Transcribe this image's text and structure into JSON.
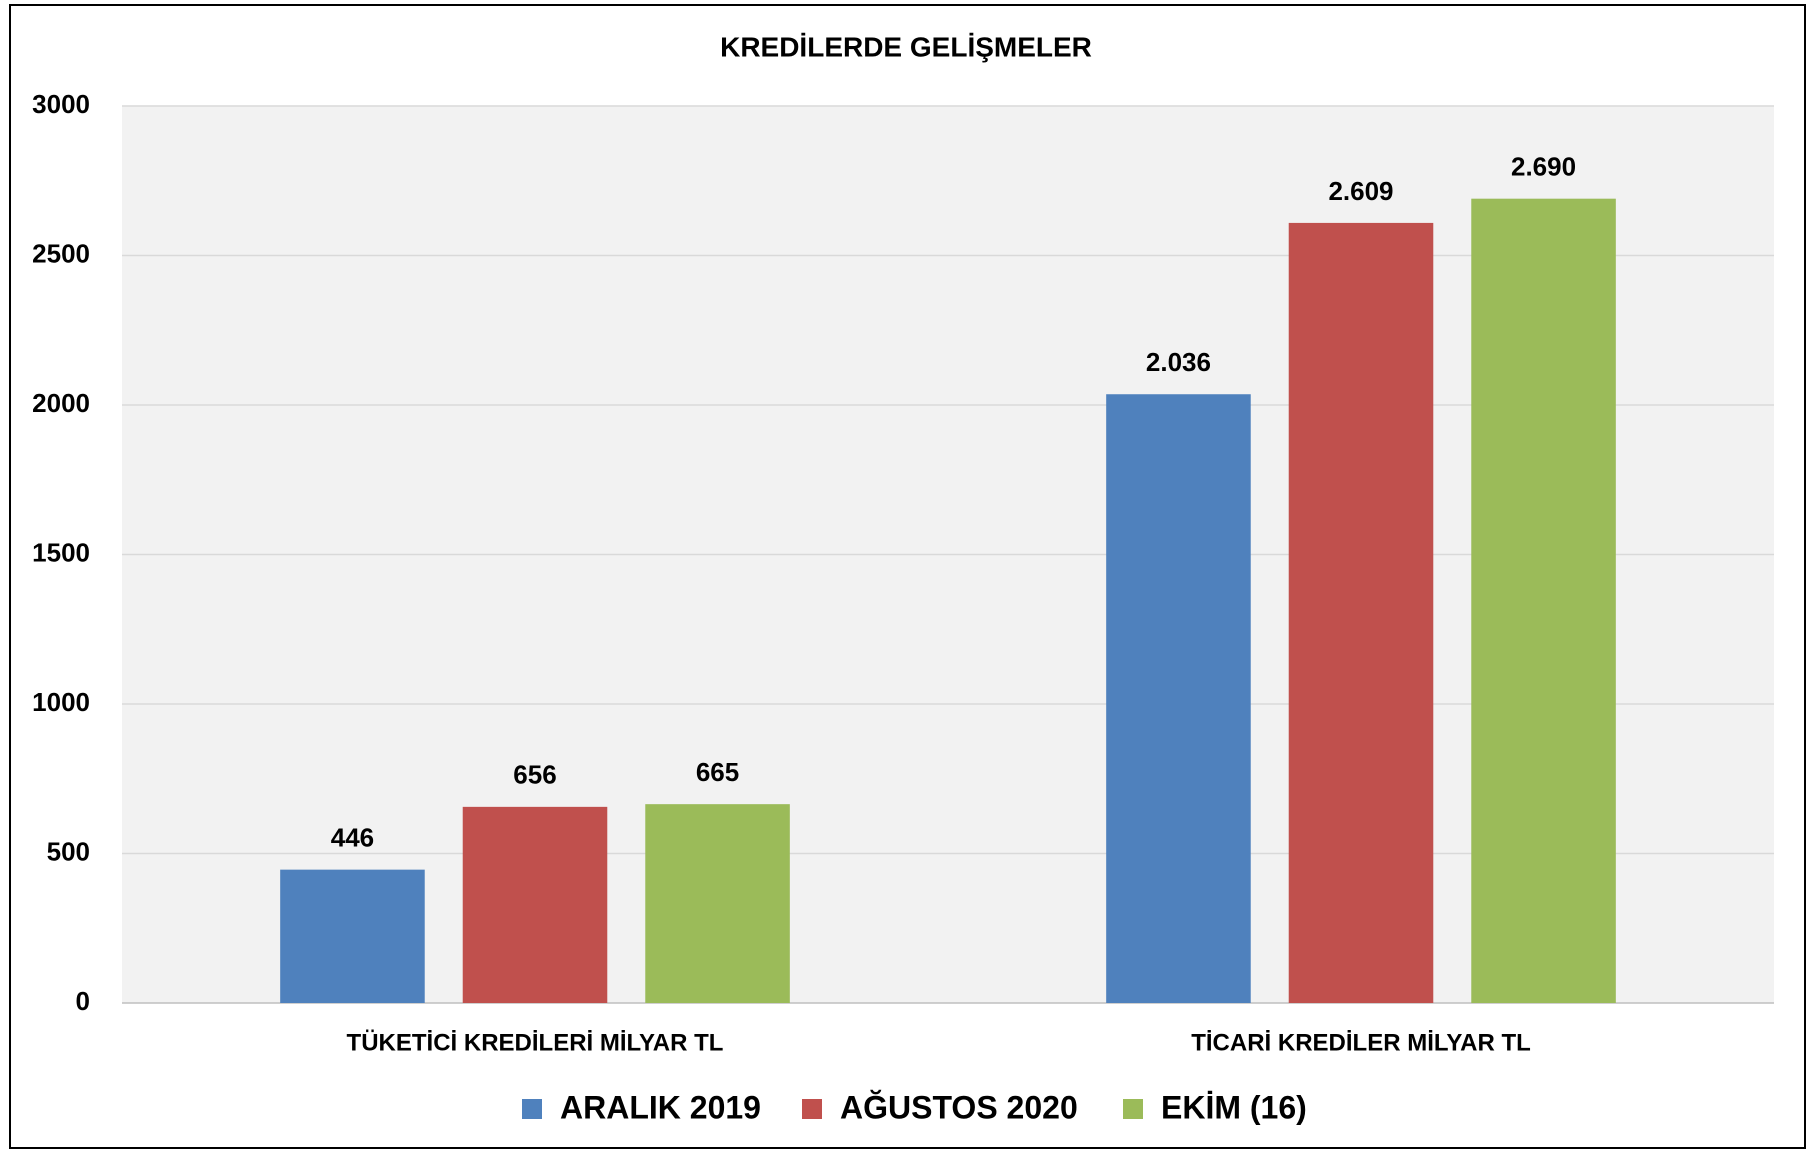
{
  "chart_data": {
    "type": "bar",
    "title": "KREDİLERDE GELİŞMELER",
    "categories": [
      "TÜKETİCİ KREDİLERİ MİLYAR TL",
      "TİCARİ KREDİLER MİLYAR TL"
    ],
    "series": [
      {
        "name": "ARALIK 2019",
        "color": "#4f81bd",
        "values": [
          446,
          2036
        ],
        "value_labels": [
          "446",
          "2.036"
        ]
      },
      {
        "name": "AĞUSTOS 2020",
        "color": "#c0504d",
        "values": [
          656,
          2609
        ],
        "value_labels": [
          "656",
          "2.609"
        ]
      },
      {
        "name": "EKİM (16)",
        "color": "#9bbb59",
        "values": [
          665,
          2690
        ],
        "value_labels": [
          "665",
          "2.690"
        ]
      }
    ],
    "ylim": [
      0,
      3000
    ],
    "yticks": [
      0,
      500,
      1000,
      1500,
      2000,
      2500,
      3000
    ],
    "grid": true,
    "legend": "bottom"
  }
}
